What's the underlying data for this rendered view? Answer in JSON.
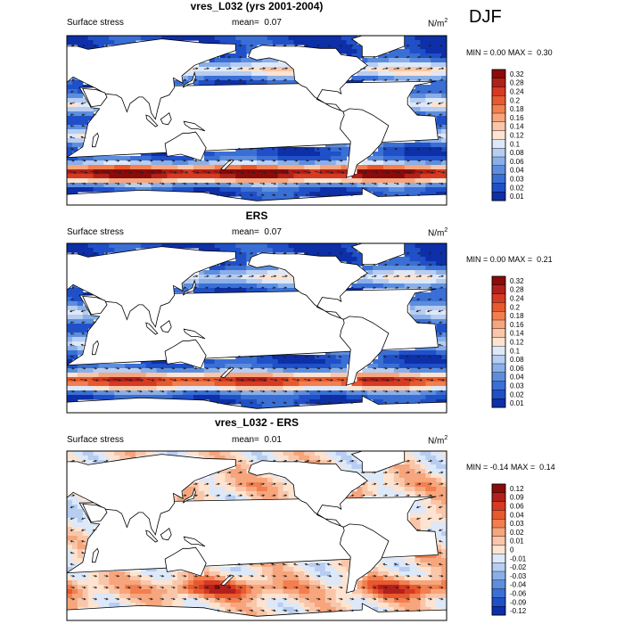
{
  "season_label": "DJF",
  "colors": {
    "land": "#ffffff",
    "coast": "#000000",
    "arrow": "#222222"
  },
  "chart_data": [
    {
      "type": "heatmap",
      "title": "vres_L032 (yrs 2001-2004)",
      "left_label": "Surface stress",
      "mean_label": "mean=",
      "mean_value": "0.07",
      "units": "N/m",
      "units_sup": "2",
      "min_text": "MIN =",
      "min_value": "0.00",
      "max_text": "MAX =",
      "max_value": "0.30",
      "colorbar_levels": [
        "0.32",
        "0.28",
        "0.24",
        "0.2",
        "0.18",
        "0.16",
        "0.14",
        "0.12",
        "0.1",
        "0.08",
        "0.06",
        "0.04",
        "0.03",
        "0.02",
        "0.01"
      ],
      "colorbar_colors": [
        "#8b0a0a",
        "#b2201a",
        "#d63a22",
        "#e8592e",
        "#f27f4f",
        "#f7a57c",
        "#f9c6a9",
        "#fde3d0",
        "#dde8f8",
        "#b7cdf1",
        "#8aafe8",
        "#5d8ede",
        "#3a6fd5",
        "#2050c8",
        "#0d2fa8"
      ],
      "extent": {
        "lon": [
          20,
          380
        ],
        "lat": [
          -80,
          80
        ]
      }
    },
    {
      "type": "heatmap",
      "title": "ERS",
      "left_label": "Surface stress",
      "mean_label": "mean=",
      "mean_value": "0.07",
      "units": "N/m",
      "units_sup": "2",
      "min_text": "MIN =",
      "min_value": "0.00",
      "max_text": "MAX =",
      "max_value": "0.21",
      "colorbar_levels": [
        "0.32",
        "0.28",
        "0.24",
        "0.2",
        "0.18",
        "0.16",
        "0.14",
        "0.12",
        "0.1",
        "0.08",
        "0.06",
        "0.04",
        "0.03",
        "0.02",
        "0.01"
      ],
      "colorbar_colors": [
        "#8b0a0a",
        "#b2201a",
        "#d63a22",
        "#e8592e",
        "#f27f4f",
        "#f7a57c",
        "#f9c6a9",
        "#fde3d0",
        "#dde8f8",
        "#b7cdf1",
        "#8aafe8",
        "#5d8ede",
        "#3a6fd5",
        "#2050c8",
        "#0d2fa8"
      ],
      "extent": {
        "lon": [
          20,
          380
        ],
        "lat": [
          -80,
          80
        ]
      }
    },
    {
      "type": "heatmap",
      "title": "vres_L032 - ERS",
      "left_label": "Surface stress",
      "mean_label": "mean=",
      "mean_value": "0.01",
      "units": "N/m",
      "units_sup": "2",
      "min_text": "MIN =",
      "min_value": "-0.14",
      "max_text": "MAX =",
      "max_value": "0.14",
      "colorbar_levels": [
        "0.12",
        "0.09",
        "0.06",
        "0.04",
        "0.03",
        "0.02",
        "0.01",
        "0",
        "-0.01",
        "-0.02",
        "-0.03",
        "-0.04",
        "-0.06",
        "-0.09",
        "-0.12"
      ],
      "colorbar_colors": [
        "#8b0a0a",
        "#b2201a",
        "#d63a22",
        "#e8592e",
        "#f27f4f",
        "#f7a57c",
        "#f9c6a9",
        "#fde3d0",
        "#dde8f8",
        "#b7cdf1",
        "#8aafe8",
        "#5d8ede",
        "#3a6fd5",
        "#2050c8",
        "#0d2fa8"
      ],
      "extent": {
        "lon": [
          20,
          380
        ],
        "lat": [
          -80,
          80
        ]
      }
    }
  ]
}
